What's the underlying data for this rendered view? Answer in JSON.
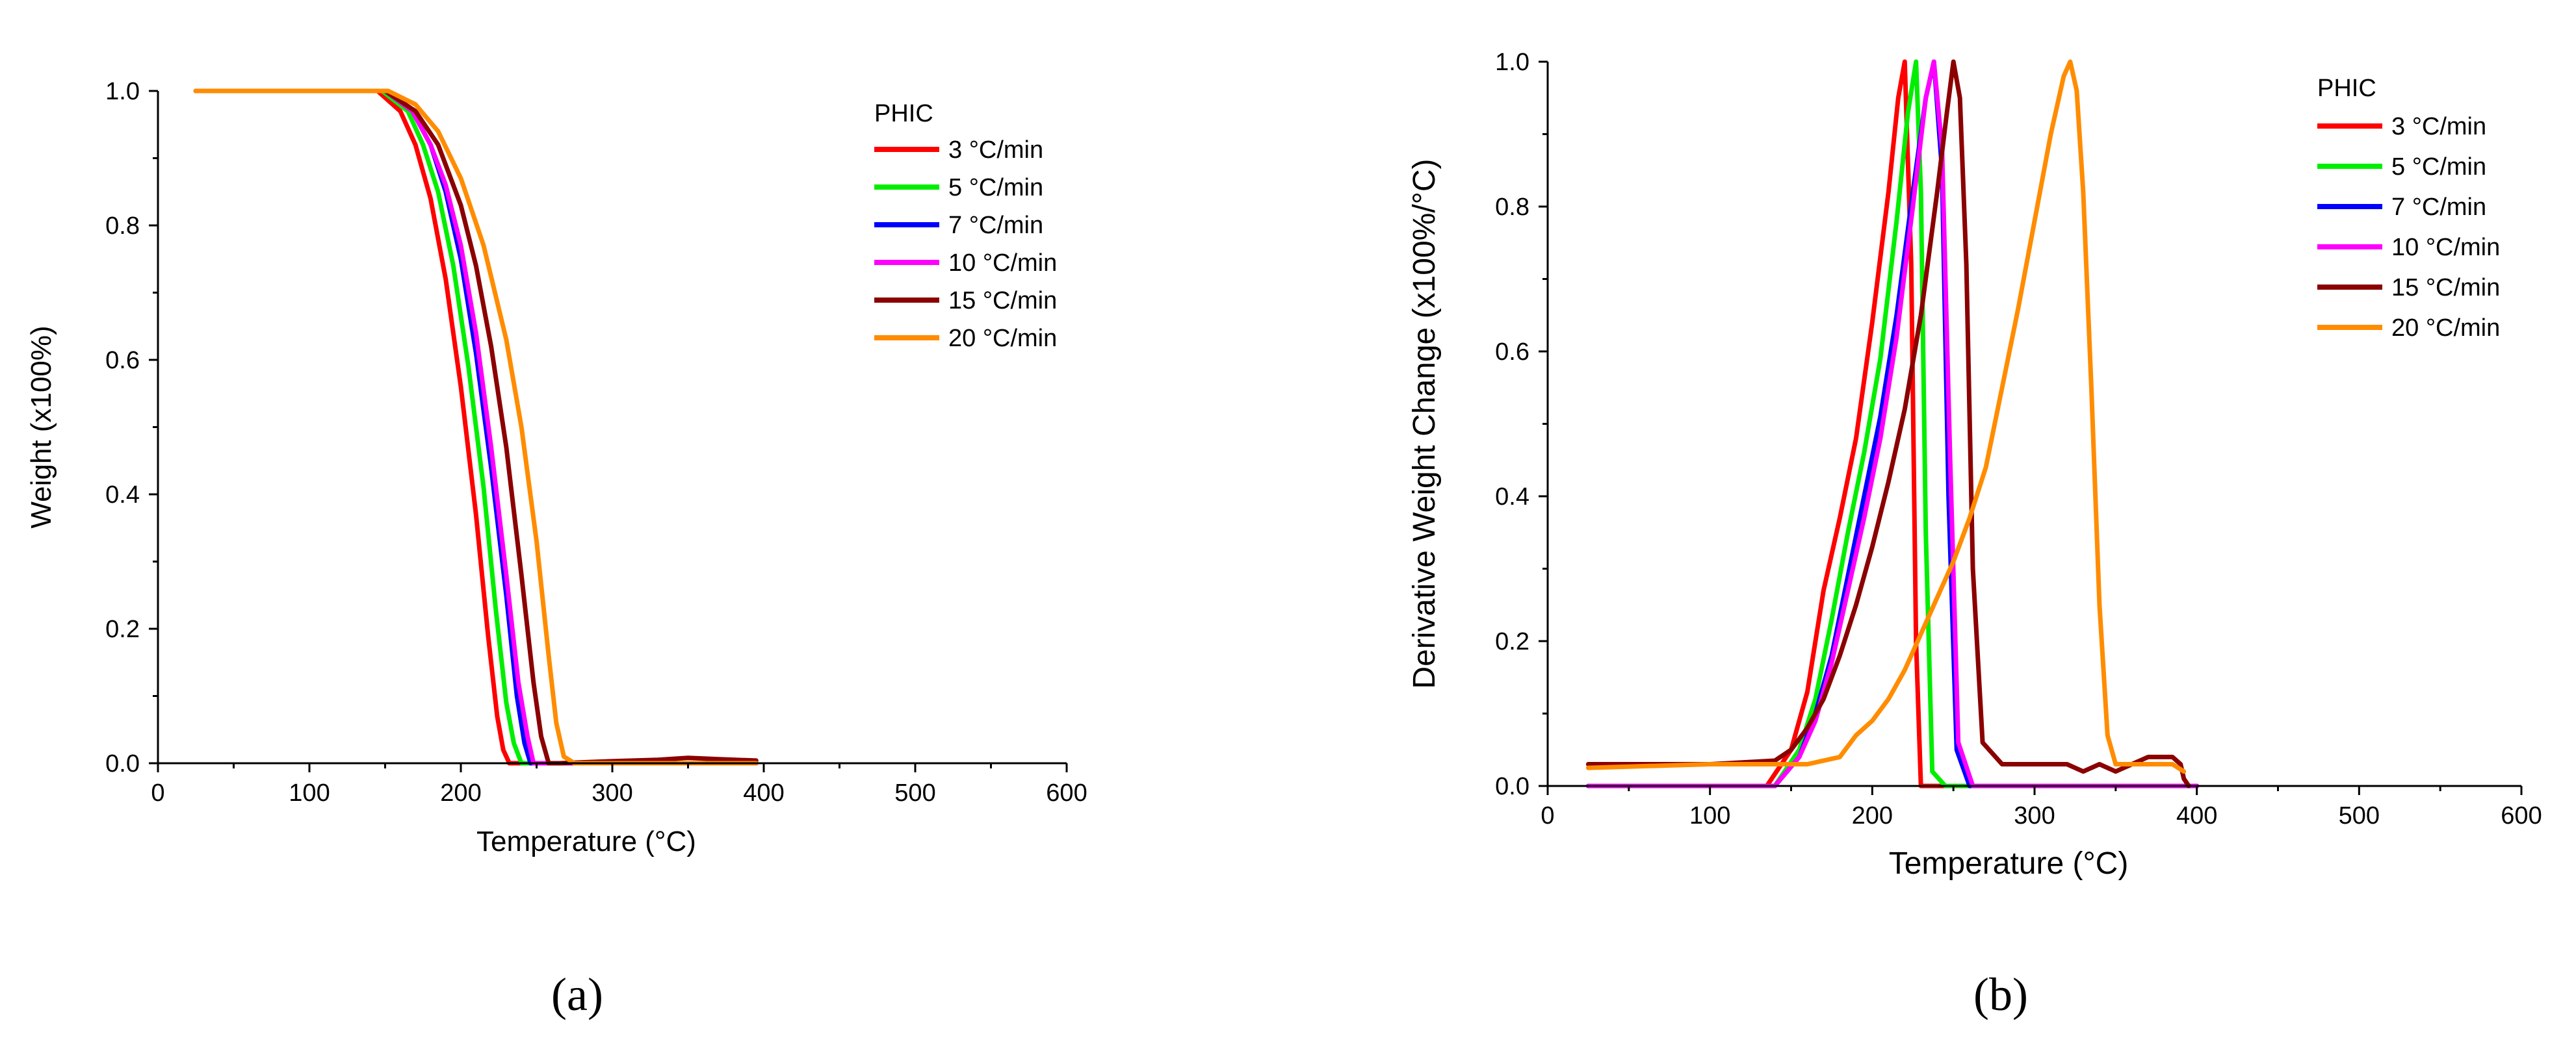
{
  "chart_data": [
    {
      "type": "line",
      "panel_label": "(a)",
      "title": "",
      "xlabel": "Temperature (°C)",
      "ylabel": "Weight (x100%)",
      "xlim": [
        0,
        600
      ],
      "ylim": [
        0,
        1.0
      ],
      "x_ticks": [
        0,
        100,
        200,
        300,
        400,
        500,
        600
      ],
      "y_ticks": [
        0.0,
        0.2,
        0.4,
        0.6,
        0.8,
        1.0
      ],
      "x_tick_labels": [
        "0",
        "100",
        "200",
        "300",
        "400",
        "500",
        "600"
      ],
      "y_tick_labels": [
        "0.0",
        "0.2",
        "0.4",
        "0.6",
        "0.8",
        "1.0"
      ],
      "legend": {
        "title": "PHIC",
        "placement": "top-right",
        "entries": [
          "3 °C/min",
          "5 °C/min",
          "7 °C/min",
          "10 °C/min",
          "15 °C/min",
          "20 °C/min"
        ]
      },
      "grid": false,
      "series": [
        {
          "name": "3 °C/min",
          "color": "#ff0000",
          "x": [
            25,
            145,
            160,
            170,
            180,
            190,
            200,
            210,
            218,
            224,
            228,
            232,
            240,
            300,
            395
          ],
          "y": [
            1.0,
            1.0,
            0.97,
            0.92,
            0.84,
            0.72,
            0.56,
            0.37,
            0.19,
            0.07,
            0.02,
            0.0,
            0.0,
            0.0,
            0.0
          ]
        },
        {
          "name": "5 °C/min",
          "color": "#00ee00",
          "x": [
            25,
            148,
            165,
            175,
            185,
            195,
            205,
            215,
            223,
            230,
            235,
            240,
            250,
            300,
            395
          ],
          "y": [
            1.0,
            1.0,
            0.97,
            0.92,
            0.85,
            0.74,
            0.59,
            0.41,
            0.23,
            0.09,
            0.03,
            0.0,
            0.0,
            0.0,
            0.0
          ]
        },
        {
          "name": "7 °C/min",
          "color": "#0000ff",
          "x": [
            25,
            150,
            168,
            180,
            190,
            200,
            210,
            220,
            230,
            237,
            242,
            246,
            255,
            300,
            395
          ],
          "y": [
            1.0,
            1.0,
            0.97,
            0.92,
            0.85,
            0.75,
            0.61,
            0.44,
            0.25,
            0.1,
            0.03,
            0.0,
            0.0,
            0.0,
            0.0
          ]
        },
        {
          "name": "10 °C/min",
          "color": "#ff00ff",
          "x": [
            25,
            150,
            168,
            180,
            190,
            200,
            210,
            220,
            230,
            238,
            244,
            248,
            257,
            300,
            395
          ],
          "y": [
            1.0,
            1.0,
            0.97,
            0.92,
            0.86,
            0.77,
            0.64,
            0.47,
            0.28,
            0.12,
            0.04,
            0.0,
            0.0,
            0.0,
            0.0
          ]
        },
        {
          "name": "15 °C/min",
          "color": "#8b0000",
          "x": [
            25,
            150,
            170,
            185,
            200,
            210,
            220,
            230,
            240,
            248,
            253,
            258,
            265,
            300,
            330,
            350,
            370,
            395
          ],
          "y": [
            1.0,
            1.0,
            0.97,
            0.92,
            0.83,
            0.74,
            0.62,
            0.47,
            0.28,
            0.12,
            0.04,
            0.0,
            0.0,
            0.003,
            0.005,
            0.008,
            0.006,
            0.004
          ]
        },
        {
          "name": "20 °C/min",
          "color": "#ff8c00",
          "x": [
            25,
            152,
            170,
            185,
            200,
            215,
            230,
            240,
            250,
            258,
            263,
            268,
            275,
            300,
            395
          ],
          "y": [
            1.0,
            1.0,
            0.98,
            0.94,
            0.87,
            0.77,
            0.63,
            0.5,
            0.33,
            0.16,
            0.06,
            0.01,
            0.0,
            0.0,
            0.0
          ]
        }
      ]
    },
    {
      "type": "line",
      "panel_label": "(b)",
      "title": "",
      "xlabel": "Temperature (°C)",
      "ylabel": "Derivative Weight Change (x100%/°C)",
      "xlim": [
        0,
        600
      ],
      "ylim": [
        0,
        1.0
      ],
      "x_ticks": [
        0,
        100,
        200,
        300,
        400,
        500,
        600
      ],
      "y_ticks": [
        0.0,
        0.2,
        0.4,
        0.6,
        0.8,
        1.0
      ],
      "x_tick_labels": [
        "0",
        "100",
        "200",
        "300",
        "400",
        "500",
        "600"
      ],
      "y_tick_labels": [
        "0.0",
        "0.2",
        "0.4",
        "0.6",
        "0.8",
        "1.0"
      ],
      "legend": {
        "title": "PHIC",
        "placement": "top-right",
        "entries": [
          "3 °C/min",
          "5 °C/min",
          "7 °C/min",
          "10 °C/min",
          "15 °C/min",
          "20 °C/min"
        ]
      },
      "grid": false,
      "series": [
        {
          "name": "3 °C/min",
          "color": "#ff0000",
          "x": [
            25,
            135,
            150,
            160,
            170,
            180,
            190,
            200,
            210,
            216,
            220,
            224,
            227,
            230,
            240,
            400
          ],
          "y": [
            0.0,
            0.0,
            0.05,
            0.13,
            0.27,
            0.37,
            0.48,
            0.64,
            0.82,
            0.95,
            1.0,
            0.72,
            0.2,
            0.0,
            0.0,
            0.0
          ]
        },
        {
          "name": "5 °C/min",
          "color": "#00ee00",
          "x": [
            25,
            140,
            155,
            165,
            175,
            185,
            195,
            205,
            215,
            222,
            227,
            230,
            233,
            237,
            245,
            400
          ],
          "y": [
            0.0,
            0.0,
            0.05,
            0.12,
            0.23,
            0.35,
            0.46,
            0.59,
            0.78,
            0.93,
            1.0,
            0.82,
            0.35,
            0.02,
            0.0,
            0.0
          ]
        },
        {
          "name": "7 °C/min",
          "color": "#0000ff",
          "x": [
            25,
            140,
            155,
            165,
            175,
            185,
            195,
            205,
            215,
            225,
            233,
            238,
            243,
            247,
            252,
            260,
            400
          ],
          "y": [
            0.0,
            0.0,
            0.04,
            0.1,
            0.18,
            0.29,
            0.4,
            0.51,
            0.65,
            0.82,
            0.95,
            1.0,
            0.85,
            0.4,
            0.05,
            0.0,
            0.0
          ]
        },
        {
          "name": "10 °C/min",
          "color": "#ff00ff",
          "x": [
            25,
            140,
            155,
            165,
            175,
            185,
            195,
            205,
            215,
            225,
            233,
            238,
            243,
            248,
            253,
            262,
            400
          ],
          "y": [
            0.0,
            0.0,
            0.04,
            0.09,
            0.17,
            0.27,
            0.37,
            0.48,
            0.62,
            0.8,
            0.95,
            1.0,
            0.88,
            0.45,
            0.06,
            0.0,
            0.0
          ]
        },
        {
          "name": "15 °C/min",
          "color": "#8b0000",
          "x": [
            25,
            60,
            100,
            140,
            150,
            160,
            170,
            180,
            190,
            200,
            210,
            220,
            230,
            240,
            246,
            250,
            254,
            258,
            262,
            268,
            280,
            300,
            320,
            330,
            340,
            350,
            360,
            370,
            385,
            390,
            392,
            395
          ],
          "y": [
            0.03,
            0.03,
            0.03,
            0.035,
            0.05,
            0.08,
            0.12,
            0.18,
            0.25,
            0.33,
            0.42,
            0.52,
            0.65,
            0.82,
            0.93,
            1.0,
            0.95,
            0.72,
            0.3,
            0.06,
            0.03,
            0.03,
            0.03,
            0.02,
            0.03,
            0.02,
            0.03,
            0.04,
            0.04,
            0.03,
            0.01,
            0.0
          ]
        },
        {
          "name": "20 °C/min",
          "color": "#ff8c00",
          "x": [
            25,
            100,
            160,
            180,
            190,
            200,
            210,
            220,
            230,
            240,
            250,
            260,
            270,
            280,
            290,
            300,
            310,
            318,
            322,
            326,
            330,
            335,
            340,
            345,
            350,
            370,
            385,
            392
          ],
          "y": [
            0.025,
            0.03,
            0.03,
            0.04,
            0.07,
            0.09,
            0.12,
            0.16,
            0.21,
            0.26,
            0.31,
            0.37,
            0.44,
            0.55,
            0.66,
            0.78,
            0.9,
            0.98,
            1.0,
            0.96,
            0.82,
            0.55,
            0.25,
            0.07,
            0.03,
            0.03,
            0.03,
            0.02
          ]
        }
      ]
    }
  ]
}
